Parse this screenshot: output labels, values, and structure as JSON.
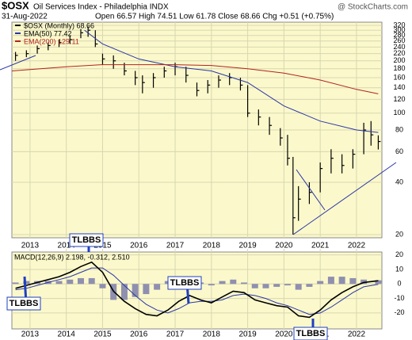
{
  "chart_data": [
    {
      "type": "ohlc",
      "symbol": "$OSX",
      "title": "Oil Services Index - Philadelphia  INDX",
      "watermark": "@ StockCharts.com",
      "date": "31-Aug-2022",
      "quote": "Open 66.57  High 74.51  Low 61.78  Close 68.66  Chg +0.51 (+0.75%)",
      "x": [
        2012.6,
        2012.9,
        2013.2,
        2013.5,
        2013.8,
        2014.1,
        2014.4,
        2014.6,
        2014.8,
        2015.0,
        2015.3,
        2015.6,
        2015.9,
        2016.1,
        2016.4,
        2016.7,
        2017.0,
        2017.3,
        2017.6,
        2017.9,
        2018.2,
        2018.5,
        2018.8,
        2019.0,
        2019.3,
        2019.6,
        2019.9,
        2020.1,
        2020.25,
        2020.4,
        2020.7,
        2021.0,
        2021.3,
        2021.6,
        2021.9,
        2022.2,
        2022.4,
        2022.6
      ],
      "series": [
        {
          "name": "$OSX (Monthly) 68.66",
          "color": "#000000",
          "high": [
            225,
            230,
            245,
            255,
            265,
            280,
            305,
            315,
            300,
            220,
            215,
            195,
            175,
            165,
            170,
            185,
            195,
            185,
            150,
            155,
            165,
            170,
            160,
            145,
            105,
            95,
            82,
            75,
            56,
            38,
            40,
            52,
            62,
            58,
            62,
            88,
            90,
            74.51
          ],
          "low": [
            200,
            210,
            220,
            230,
            240,
            250,
            270,
            275,
            240,
            190,
            180,
            165,
            145,
            130,
            140,
            160,
            165,
            150,
            125,
            130,
            140,
            145,
            135,
            95,
            85,
            75,
            65,
            50,
            20,
            24,
            30,
            35,
            45,
            45,
            48,
            58,
            65,
            61.78
          ],
          "values": [
            215,
            220,
            235,
            245,
            255,
            265,
            290,
            300,
            250,
            205,
            200,
            175,
            160,
            150,
            160,
            175,
            185,
            165,
            135,
            145,
            155,
            160,
            145,
            100,
            95,
            85,
            72,
            55,
            25,
            32,
            35,
            48,
            55,
            50,
            58,
            80,
            75,
            68.66
          ]
        },
        {
          "name": "EMA(50) 77.42",
          "color": "#2b35a8",
          "x": [
            2014.5,
            2015,
            2016,
            2017,
            2018,
            2019,
            2020,
            2021,
            2022,
            2022.6
          ],
          "values": [
            300,
            250,
            205,
            185,
            175,
            150,
            110,
            90,
            80,
            77.42
          ]
        },
        {
          "name": "EMA(200) 129.11",
          "color": "#b22222",
          "x": [
            2012.5,
            2014,
            2015,
            2016,
            2017,
            2018,
            2019,
            2020,
            2021,
            2022,
            2022.6
          ],
          "values": [
            175,
            185,
            190,
            190,
            190,
            188,
            180,
            170,
            155,
            137,
            129.11
          ]
        }
      ],
      "log_scale": true,
      "ylim": [
        20,
        320
      ],
      "yticks": [
        320,
        300,
        280,
        260,
        240,
        220,
        200,
        180,
        160,
        140,
        120,
        100,
        80,
        60,
        40,
        20
      ],
      "xlim": [
        2012.5,
        2022.7
      ],
      "xticks": [
        2013,
        2014,
        2015,
        2016,
        2017,
        2018,
        2019,
        2020,
        2021,
        2022
      ],
      "grid": true
    },
    {
      "type": "macd",
      "legend": "MACD(12,26,9) 2.198, -0.312, 2.510",
      "x": [
        2012.6,
        2012.9,
        2013.2,
        2013.5,
        2013.8,
        2014.1,
        2014.4,
        2014.7,
        2015.0,
        2015.3,
        2015.6,
        2015.9,
        2016.2,
        2016.5,
        2016.8,
        2017.1,
        2017.4,
        2017.7,
        2018.0,
        2018.3,
        2018.6,
        2018.9,
        2019.2,
        2019.5,
        2019.8,
        2020.1,
        2020.4,
        2020.7,
        2021.0,
        2021.3,
        2021.6,
        2021.9,
        2022.2,
        2022.6
      ],
      "series": [
        {
          "name": "MACD",
          "color": "#000000",
          "values": [
            -3,
            -1,
            1,
            3,
            5,
            8,
            12,
            15,
            8,
            -5,
            -12,
            -17,
            -21,
            -22,
            -18,
            -12,
            -8,
            -11,
            -13,
            -9,
            -5,
            -6,
            -11,
            -13,
            -15,
            -16,
            -22,
            -23,
            -18,
            -11,
            -6,
            -2,
            1,
            2.198
          ]
        },
        {
          "name": "Signal",
          "color": "#2b35a8",
          "values": [
            -4,
            -3,
            -1,
            1,
            3,
            5,
            8,
            11,
            11,
            6,
            -1,
            -8,
            -14,
            -18,
            -20,
            -17,
            -13,
            -12,
            -12,
            -11,
            -8,
            -7,
            -8,
            -10,
            -13,
            -15,
            -18,
            -21,
            -20,
            -16,
            -11,
            -6,
            -2,
            -0.312
          ]
        },
        {
          "name": "Histogram",
          "color": "#8f8fb0",
          "values": [
            1,
            2,
            2,
            2,
            2,
            3,
            4,
            4,
            -3,
            -11,
            -11,
            -9,
            -7,
            -4,
            2,
            5,
            5,
            1,
            -1,
            2,
            3,
            1,
            -3,
            -3,
            -2,
            -1,
            -4,
            -2,
            2,
            5,
            5,
            4,
            3,
            2.51
          ]
        }
      ],
      "ylim": [
        -31,
        22
      ],
      "yticks": [
        20,
        10,
        0,
        -10,
        -20
      ],
      "xlim": [
        2012.5,
        2022.7
      ],
      "xticks": [
        2013,
        2014,
        2015,
        2016,
        2017,
        2018,
        2019,
        2020,
        2021,
        2022
      ],
      "grid": true,
      "annotations": [
        "TLBBS",
        "TLBBS",
        "TLBBS",
        "TLBBS"
      ]
    }
  ]
}
